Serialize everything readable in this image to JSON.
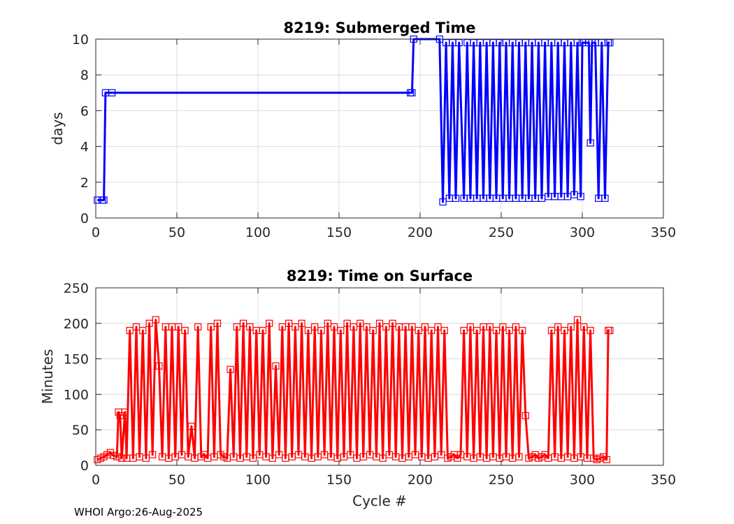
{
  "footer": "WHOI Argo:26-Aug-2025",
  "chart_data": [
    {
      "type": "line",
      "title": "8219: Submerged Time",
      "xlabel": "",
      "ylabel": "days",
      "xlim": [
        0,
        350
      ],
      "ylim": [
        0,
        10
      ],
      "xticks": [
        0,
        50,
        100,
        150,
        200,
        250,
        300,
        350
      ],
      "yticks": [
        0,
        2,
        4,
        6,
        8,
        10
      ],
      "grid": true,
      "color": "#0000ff",
      "marker": "square",
      "segments": [
        [
          1,
          1.0
        ],
        [
          4,
          1.0
        ],
        [
          5,
          1.0
        ],
        [
          6,
          7.0
        ],
        [
          10,
          7.0
        ],
        [
          194,
          7.0
        ],
        [
          195,
          7.0
        ],
        [
          196,
          10.0
        ],
        [
          212,
          10.0
        ],
        [
          214,
          0.9
        ],
        [
          216,
          9.8
        ],
        [
          218,
          1.1
        ],
        [
          220,
          9.8
        ],
        [
          222,
          1.1
        ],
        [
          224,
          9.8
        ],
        [
          227,
          1.1
        ],
        [
          229,
          9.8
        ],
        [
          231,
          1.1
        ],
        [
          233,
          9.8
        ],
        [
          235,
          1.1
        ],
        [
          237,
          9.8
        ],
        [
          239,
          1.1
        ],
        [
          241,
          9.8
        ],
        [
          243,
          1.1
        ],
        [
          245,
          9.8
        ],
        [
          247,
          1.1
        ],
        [
          249,
          9.8
        ],
        [
          251,
          1.1
        ],
        [
          253,
          9.8
        ],
        [
          255,
          1.1
        ],
        [
          257,
          9.8
        ],
        [
          259,
          1.1
        ],
        [
          261,
          9.8
        ],
        [
          263,
          1.1
        ],
        [
          265,
          9.8
        ],
        [
          267,
          1.1
        ],
        [
          269,
          9.8
        ],
        [
          271,
          1.1
        ],
        [
          273,
          9.8
        ],
        [
          275,
          1.1
        ],
        [
          277,
          9.8
        ],
        [
          279,
          1.2
        ],
        [
          281,
          9.8
        ],
        [
          283,
          1.2
        ],
        [
          285,
          9.8
        ],
        [
          287,
          1.2
        ],
        [
          289,
          9.8
        ],
        [
          291,
          1.2
        ],
        [
          293,
          9.8
        ],
        [
          295,
          1.3
        ],
        [
          297,
          9.8
        ],
        [
          299,
          1.2
        ],
        [
          300,
          9.8
        ],
        [
          304,
          9.8
        ],
        [
          305,
          4.2
        ],
        [
          306,
          9.8
        ],
        [
          308,
          9.8
        ],
        [
          310,
          1.1
        ],
        [
          312,
          9.8
        ],
        [
          314,
          1.1
        ],
        [
          316,
          9.8
        ],
        [
          317,
          9.8
        ]
      ]
    },
    {
      "type": "line",
      "title": "8219: Time on Surface",
      "xlabel": "Cycle #",
      "ylabel": "Minutes",
      "xlim": [
        0,
        350
      ],
      "ylim": [
        0,
        250
      ],
      "xticks": [
        0,
        50,
        100,
        150,
        200,
        250,
        300,
        350
      ],
      "yticks": [
        0,
        50,
        100,
        150,
        200,
        250
      ],
      "grid": true,
      "color": "#ff0000",
      "marker": "square",
      "segments": [
        [
          1,
          8
        ],
        [
          3,
          10
        ],
        [
          5,
          12
        ],
        [
          7,
          15
        ],
        [
          9,
          18
        ],
        [
          11,
          14
        ],
        [
          13,
          12
        ],
        [
          14,
          75
        ],
        [
          15,
          70
        ],
        [
          16,
          10
        ],
        [
          18,
          75
        ],
        [
          19,
          10
        ],
        [
          21,
          190
        ],
        [
          23,
          10
        ],
        [
          25,
          195
        ],
        [
          27,
          12
        ],
        [
          29,
          190
        ],
        [
          31,
          10
        ],
        [
          33,
          200
        ],
        [
          35,
          15
        ],
        [
          37,
          205
        ],
        [
          39,
          140
        ],
        [
          41,
          12
        ],
        [
          43,
          195
        ],
        [
          45,
          10
        ],
        [
          47,
          195
        ],
        [
          49,
          12
        ],
        [
          51,
          195
        ],
        [
          53,
          15
        ],
        [
          55,
          190
        ],
        [
          57,
          12
        ],
        [
          59,
          55
        ],
        [
          61,
          10
        ],
        [
          63,
          195
        ],
        [
          65,
          12
        ],
        [
          67,
          15
        ],
        [
          69,
          10
        ],
        [
          71,
          195
        ],
        [
          73,
          12
        ],
        [
          75,
          200
        ],
        [
          77,
          15
        ],
        [
          79,
          12
        ],
        [
          81,
          10
        ],
        [
          83,
          135
        ],
        [
          85,
          12
        ],
        [
          87,
          195
        ],
        [
          89,
          10
        ],
        [
          91,
          200
        ],
        [
          93,
          12
        ],
        [
          95,
          195
        ],
        [
          97,
          10
        ],
        [
          99,
          190
        ],
        [
          101,
          15
        ],
        [
          103,
          190
        ],
        [
          105,
          12
        ],
        [
          107,
          200
        ],
        [
          109,
          10
        ],
        [
          111,
          140
        ],
        [
          113,
          15
        ],
        [
          115,
          195
        ],
        [
          117,
          10
        ],
        [
          119,
          200
        ],
        [
          121,
          12
        ],
        [
          123,
          195
        ],
        [
          125,
          15
        ],
        [
          127,
          200
        ],
        [
          129,
          12
        ],
        [
          131,
          190
        ],
        [
          133,
          10
        ],
        [
          135,
          195
        ],
        [
          137,
          12
        ],
        [
          139,
          190
        ],
        [
          141,
          15
        ],
        [
          143,
          200
        ],
        [
          145,
          12
        ],
        [
          147,
          195
        ],
        [
          149,
          10
        ],
        [
          151,
          190
        ],
        [
          153,
          12
        ],
        [
          155,
          200
        ],
        [
          157,
          15
        ],
        [
          159,
          195
        ],
        [
          161,
          10
        ],
        [
          163,
          200
        ],
        [
          165,
          12
        ],
        [
          167,
          195
        ],
        [
          169,
          15
        ],
        [
          171,
          190
        ],
        [
          173,
          12
        ],
        [
          175,
          200
        ],
        [
          177,
          10
        ],
        [
          179,
          195
        ],
        [
          181,
          15
        ],
        [
          183,
          200
        ],
        [
          185,
          12
        ],
        [
          187,
          195
        ],
        [
          189,
          10
        ],
        [
          191,
          195
        ],
        [
          193,
          12
        ],
        [
          195,
          195
        ],
        [
          197,
          15
        ],
        [
          199,
          190
        ],
        [
          201,
          12
        ],
        [
          203,
          195
        ],
        [
          205,
          10
        ],
        [
          207,
          190
        ],
        [
          209,
          12
        ],
        [
          211,
          195
        ],
        [
          213,
          15
        ],
        [
          215,
          190
        ],
        [
          217,
          10
        ],
        [
          219,
          12
        ],
        [
          221,
          15
        ],
        [
          223,
          10
        ],
        [
          225,
          15
        ],
        [
          227,
          190
        ],
        [
          229,
          12
        ],
        [
          231,
          195
        ],
        [
          233,
          10
        ],
        [
          235,
          190
        ],
        [
          237,
          12
        ],
        [
          239,
          195
        ],
        [
          241,
          10
        ],
        [
          243,
          195
        ],
        [
          245,
          12
        ],
        [
          247,
          190
        ],
        [
          249,
          10
        ],
        [
          251,
          195
        ],
        [
          253,
          12
        ],
        [
          255,
          190
        ],
        [
          257,
          10
        ],
        [
          259,
          195
        ],
        [
          261,
          12
        ],
        [
          263,
          190
        ],
        [
          265,
          70
        ],
        [
          267,
          10
        ],
        [
          269,
          12
        ],
        [
          271,
          15
        ],
        [
          273,
          10
        ],
        [
          275,
          12
        ],
        [
          277,
          15
        ],
        [
          279,
          10
        ],
        [
          281,
          190
        ],
        [
          283,
          12
        ],
        [
          285,
          195
        ],
        [
          287,
          10
        ],
        [
          289,
          190
        ],
        [
          291,
          12
        ],
        [
          293,
          195
        ],
        [
          295,
          10
        ],
        [
          297,
          205
        ],
        [
          299,
          12
        ],
        [
          301,
          195
        ],
        [
          303,
          10
        ],
        [
          305,
          190
        ],
        [
          307,
          10
        ],
        [
          309,
          8
        ],
        [
          311,
          10
        ],
        [
          313,
          12
        ],
        [
          315,
          8
        ],
        [
          316,
          190
        ],
        [
          317,
          190
        ]
      ]
    }
  ]
}
